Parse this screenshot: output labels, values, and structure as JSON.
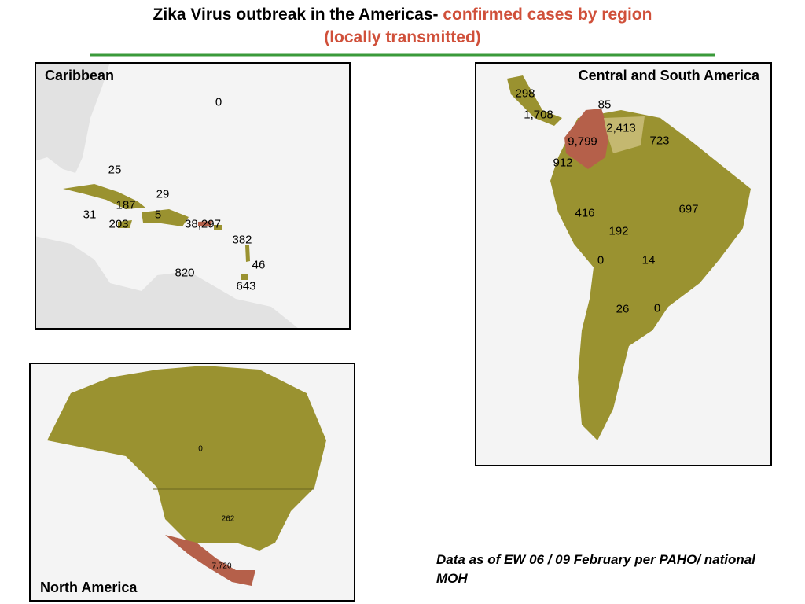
{
  "title": {
    "lead": "Zika Virus outbreak in the Americas-",
    "highlight": "confirmed cases by region (locally transmitted)"
  },
  "maps": [
    {
      "name": "Caribbean",
      "labels": [
        "0",
        "25",
        "29",
        "187",
        "31",
        "5",
        "203",
        "38,297",
        "382",
        "46",
        "820",
        "643"
      ]
    },
    {
      "name": "Central and South America",
      "labels": [
        "298",
        "1,708",
        "85",
        "2,413",
        "9,799",
        "723",
        "912",
        "697",
        "416",
        "192",
        "0",
        "14",
        "26",
        "0"
      ]
    },
    {
      "name": "North America",
      "labels": [
        "0",
        "262",
        "7,720"
      ]
    }
  ],
  "footnote": "Data as of EW 06 / 09 February per PAHO/ national MOH"
}
